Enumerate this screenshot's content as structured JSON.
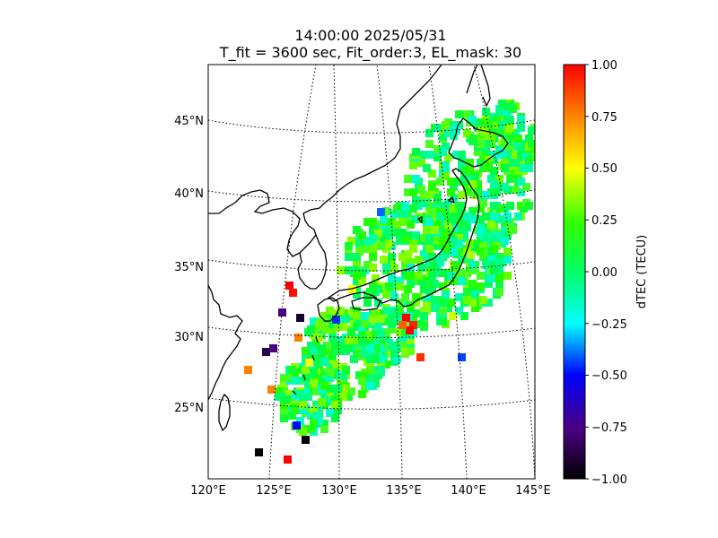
{
  "title": {
    "line1": "14:00:00 2025/05/31",
    "line2": "T_fit = 3600 sec, Fit_order:3, EL_mask: 30"
  },
  "map": {
    "region": "Japan and surrounding region",
    "lon_labels": [
      "120°E",
      "125°E",
      "130°E",
      "135°E",
      "140°E",
      "145°E"
    ],
    "lat_labels": [
      "25°N",
      "30°N",
      "35°N",
      "40°N",
      "45°N"
    ],
    "lon_range": [
      120,
      145
    ],
    "lat_range": [
      20,
      49
    ],
    "graticule": "dotted",
    "coastlines": true
  },
  "colorbar": {
    "label": "dTEC (TECU)",
    "ticks": [
      "1.00",
      "0.75",
      "0.50",
      "0.25",
      "0.00",
      "−0.25",
      "−0.50",
      "−0.75",
      "−1.00"
    ],
    "range": [
      -1.0,
      1.0
    ],
    "colormap": [
      "#000000",
      "#4b0082",
      "#0000ff",
      "#00ffff",
      "#00ff00",
      "#ffff00",
      "#ff8000",
      "#ff0000"
    ]
  }
}
